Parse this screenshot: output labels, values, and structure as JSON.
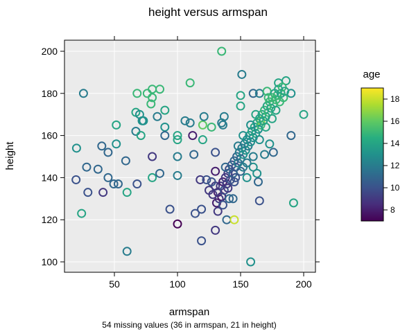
{
  "chart_data": {
    "type": "scatter",
    "title": "height versus armspan",
    "xlabel": "armspan",
    "ylabel": "height",
    "subtitle": "54 missing values (36 in armspan, 21 in height)",
    "xlim": [
      12,
      210
    ],
    "ylim": [
      95,
      205
    ],
    "xticks": [
      50,
      100,
      150,
      200
    ],
    "yticks": [
      100,
      120,
      140,
      160,
      180,
      200
    ],
    "grid": true,
    "background": "#ebebeb",
    "marker": "open-circle",
    "color_scale": {
      "title": "age",
      "palette": "viridis",
      "range": [
        7,
        19
      ],
      "ticks": [
        8,
        10,
        12,
        14,
        16,
        18
      ],
      "placement": "right"
    },
    "points": [
      [
        135,
        200,
        15
      ],
      [
        151,
        189,
        12
      ],
      [
        25.5,
        180,
        12
      ],
      [
        68,
        180,
        15
      ],
      [
        76,
        180,
        15
      ],
      [
        80,
        182,
        15
      ],
      [
        86,
        182,
        15
      ],
      [
        80,
        178,
        15
      ],
      [
        79,
        175,
        15
      ],
      [
        110,
        185,
        15
      ],
      [
        51.5,
        165,
        14
      ],
      [
        67,
        171,
        14
      ],
      [
        70,
        170,
        13
      ],
      [
        72,
        167,
        13
      ],
      [
        73,
        167,
        13
      ],
      [
        84,
        169,
        12
      ],
      [
        90,
        172,
        14
      ],
      [
        90,
        164,
        13
      ],
      [
        67,
        162,
        12
      ],
      [
        71,
        160,
        14
      ],
      [
        90,
        160,
        11
      ],
      [
        100,
        160,
        14
      ],
      [
        100,
        158,
        14
      ],
      [
        112,
        160,
        8
      ],
      [
        120,
        158,
        14
      ],
      [
        120,
        165,
        16
      ],
      [
        127,
        164,
        15
      ],
      [
        121,
        169,
        12
      ],
      [
        106,
        167,
        12
      ],
      [
        110,
        166,
        12
      ],
      [
        135,
        166,
        12
      ],
      [
        137,
        169,
        12
      ],
      [
        136,
        165,
        12
      ],
      [
        20,
        154,
        13
      ],
      [
        40,
        155,
        11
      ],
      [
        45,
        152,
        11
      ],
      [
        51.5,
        156,
        13
      ],
      [
        59,
        148,
        11
      ],
      [
        80,
        150,
        9
      ],
      [
        100,
        150,
        12
      ],
      [
        113,
        151,
        11
      ],
      [
        130,
        152,
        10
      ],
      [
        28,
        145,
        11
      ],
      [
        37,
        144,
        11
      ],
      [
        19.6,
        139,
        10
      ],
      [
        45,
        140,
        11
      ],
      [
        49.5,
        137,
        11
      ],
      [
        53,
        137,
        11
      ],
      [
        68,
        137,
        10
      ],
      [
        80,
        140,
        14
      ],
      [
        86,
        142,
        11
      ],
      [
        100,
        141,
        12
      ],
      [
        29,
        133,
        10
      ],
      [
        41,
        133,
        9
      ],
      [
        60,
        133,
        14
      ],
      [
        24,
        123,
        14
      ],
      [
        94,
        125,
        10
      ],
      [
        100,
        118,
        7
      ],
      [
        60,
        105,
        12
      ],
      [
        118,
        139,
        9
      ],
      [
        123,
        139,
        10
      ],
      [
        130,
        143,
        8
      ],
      [
        119,
        125,
        10
      ],
      [
        114,
        123,
        10
      ],
      [
        132,
        124,
        9
      ],
      [
        130,
        115,
        9
      ],
      [
        119,
        110,
        10
      ],
      [
        139,
        120,
        11
      ],
      [
        145,
        120,
        18
      ],
      [
        144,
        130,
        11
      ],
      [
        165,
        129,
        10
      ],
      [
        164,
        138,
        11
      ],
      [
        163,
        142,
        13
      ],
      [
        160,
        145,
        13
      ],
      [
        158,
        100,
        13
      ],
      [
        192,
        128,
        14
      ],
      [
        190,
        160,
        11
      ],
      [
        200,
        170,
        14
      ],
      [
        176,
        152,
        11
      ],
      [
        169,
        151,
        12
      ],
      [
        173,
        156,
        13
      ],
      [
        150,
        179,
        14
      ],
      [
        150,
        174,
        14
      ],
      [
        160,
        180,
        11
      ],
      [
        165,
        180,
        12
      ],
      [
        171,
        181,
        15
      ],
      [
        180,
        185,
        14
      ],
      [
        186,
        186,
        14
      ],
      [
        190,
        180,
        13
      ],
      [
        166,
        167,
        17
      ],
      [
        168,
        167,
        16
      ],
      [
        132,
        133,
        8
      ],
      [
        134,
        136,
        9
      ],
      [
        136,
        138,
        8
      ],
      [
        138,
        140,
        9
      ],
      [
        140,
        142,
        9
      ],
      [
        135,
        131,
        8
      ],
      [
        130,
        136,
        9
      ],
      [
        137,
        134,
        10
      ],
      [
        139,
        137,
        9
      ],
      [
        141,
        144,
        10
      ],
      [
        142,
        139,
        10
      ],
      [
        143,
        146,
        10
      ],
      [
        144,
        142,
        11
      ],
      [
        145,
        148,
        11
      ],
      [
        146,
        145,
        10
      ],
      [
        147,
        150,
        11
      ],
      [
        148,
        147,
        12
      ],
      [
        149,
        152,
        12
      ],
      [
        150,
        149,
        11
      ],
      [
        151,
        154,
        12
      ],
      [
        152,
        151,
        13
      ],
      [
        153,
        156,
        12
      ],
      [
        154,
        153,
        13
      ],
      [
        155,
        158,
        13
      ],
      [
        156,
        155,
        12
      ],
      [
        157,
        160,
        13
      ],
      [
        158,
        157,
        13
      ],
      [
        159,
        162,
        14
      ],
      [
        160,
        159,
        13
      ],
      [
        161,
        164,
        14
      ],
      [
        162,
        161,
        14
      ],
      [
        163,
        166,
        14
      ],
      [
        164,
        163,
        13
      ],
      [
        165,
        168,
        14
      ],
      [
        166,
        165,
        15
      ],
      [
        167,
        170,
        14
      ],
      [
        168,
        167,
        14
      ],
      [
        169,
        172,
        15
      ],
      [
        170,
        169,
        14
      ],
      [
        171,
        174,
        14
      ],
      [
        172,
        171,
        15
      ],
      [
        173,
        176,
        15
      ],
      [
        174,
        173,
        14
      ],
      [
        175,
        178,
        15
      ],
      [
        176,
        175,
        15
      ],
      [
        177,
        180,
        14
      ],
      [
        178,
        177,
        15
      ],
      [
        179,
        179,
        15
      ],
      [
        180,
        182,
        14
      ],
      [
        181,
        176,
        15
      ],
      [
        182,
        180,
        14
      ],
      [
        183,
        183,
        15
      ],
      [
        184,
        178,
        15
      ],
      [
        185,
        181,
        14
      ],
      [
        178,
        172,
        14
      ],
      [
        170,
        164,
        14
      ],
      [
        160,
        150,
        12
      ],
      [
        150,
        143,
        11
      ],
      [
        140,
        135,
        9
      ],
      [
        133,
        130,
        9
      ],
      [
        145,
        138,
        10
      ],
      [
        155,
        147,
        12
      ],
      [
        165,
        158,
        13
      ],
      [
        175,
        168,
        14
      ],
      [
        158,
        165,
        13
      ],
      [
        148,
        155,
        12
      ],
      [
        152,
        160,
        13
      ],
      [
        162,
        170,
        14
      ],
      [
        172,
        178,
        15
      ],
      [
        146,
        140,
        10
      ],
      [
        138,
        145,
        11
      ],
      [
        128,
        132,
        9
      ],
      [
        127,
        138,
        10
      ],
      [
        125,
        134,
        9
      ],
      [
        131,
        128,
        8
      ],
      [
        136,
        127,
        10
      ],
      [
        141,
        130,
        11
      ],
      [
        155,
        140,
        13
      ],
      [
        152,
        145,
        12
      ]
    ],
    "point_fields": [
      "armspan",
      "height",
      "age"
    ]
  }
}
